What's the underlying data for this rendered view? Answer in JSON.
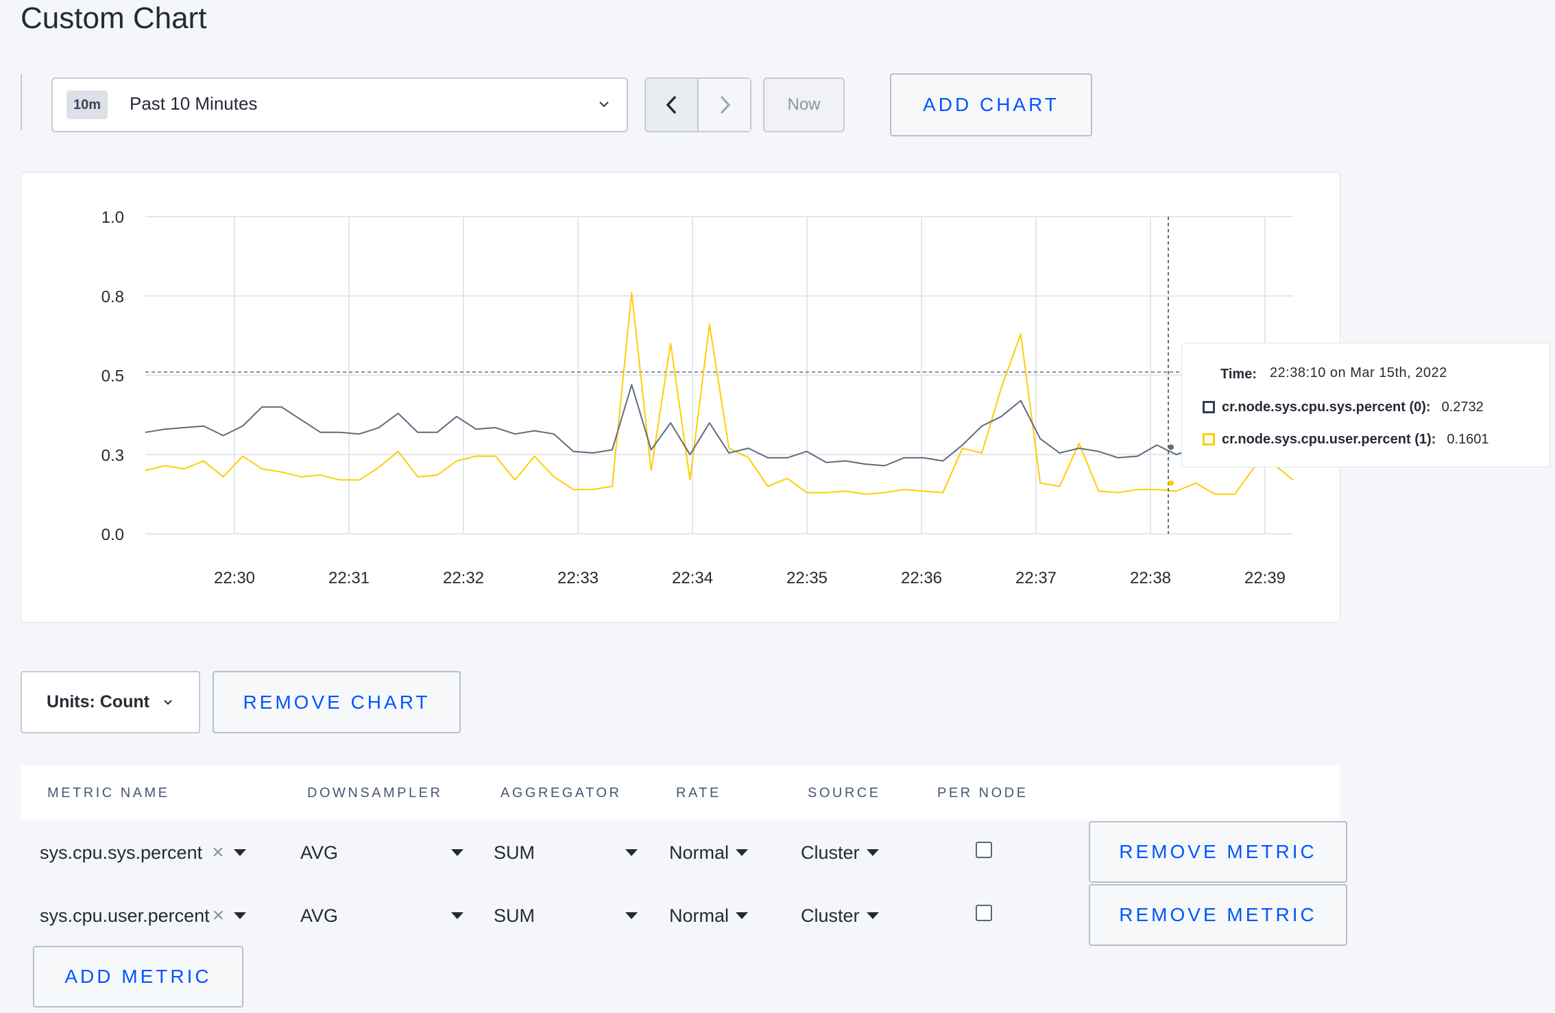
{
  "page": {
    "title": "Custom Chart"
  },
  "toolbar": {
    "time_badge": "10m",
    "time_label": "Past 10 Minutes",
    "now_label": "Now",
    "add_chart_label": "ADD CHART"
  },
  "chart_data": {
    "type": "line",
    "x_ticks": [
      "22:30",
      "22:31",
      "22:32",
      "22:33",
      "22:34",
      "22:35",
      "22:36",
      "22:37",
      "22:38",
      "22:39"
    ],
    "y_ticks": [
      "0.0",
      "0.3",
      "0.5",
      "0.8",
      "1.0"
    ],
    "ylim": [
      0,
      1
    ],
    "grid": true,
    "reference_line": 0.51,
    "series": [
      {
        "name": "cr.node.sys.cpu.sys.percent (0)",
        "color": "#5c6b7e",
        "values": [
          0.32,
          0.33,
          0.335,
          0.34,
          0.31,
          0.34,
          0.4,
          0.4,
          0.36,
          0.32,
          0.32,
          0.315,
          0.335,
          0.38,
          0.32,
          0.32,
          0.37,
          0.33,
          0.335,
          0.315,
          0.325,
          0.315,
          0.26,
          0.255,
          0.265,
          0.47,
          0.265,
          0.35,
          0.25,
          0.35,
          0.255,
          0.27,
          0.24,
          0.24,
          0.26,
          0.225,
          0.23,
          0.22,
          0.215,
          0.24,
          0.24,
          0.23,
          0.28,
          0.34,
          0.37,
          0.42,
          0.3,
          0.255,
          0.27,
          0.26,
          0.24,
          0.245,
          0.28,
          0.25,
          0.2732,
          0.25,
          0.26,
          0.24,
          0.23,
          0.23
        ]
      },
      {
        "name": "cr.node.sys.cpu.user.percent (1)",
        "color": "#ffcd02",
        "values": [
          0.2,
          0.215,
          0.205,
          0.23,
          0.18,
          0.245,
          0.205,
          0.195,
          0.18,
          0.185,
          0.17,
          0.17,
          0.21,
          0.26,
          0.18,
          0.185,
          0.23,
          0.245,
          0.245,
          0.17,
          0.245,
          0.18,
          0.14,
          0.14,
          0.15,
          0.76,
          0.2,
          0.6,
          0.17,
          0.66,
          0.27,
          0.24,
          0.15,
          0.175,
          0.13,
          0.13,
          0.135,
          0.125,
          0.13,
          0.14,
          0.135,
          0.13,
          0.27,
          0.255,
          0.46,
          0.63,
          0.16,
          0.15,
          0.285,
          0.135,
          0.13,
          0.14,
          0.14,
          0.135,
          0.1601,
          0.125,
          0.125,
          0.21,
          0.22,
          0.17
        ]
      }
    ]
  },
  "tooltip": {
    "time_label": "Time:",
    "time_value": "22:38:10 on Mar 15th, 2022",
    "rows": [
      {
        "name": "cr.node.sys.cpu.sys.percent (0):",
        "value": "0.2732"
      },
      {
        "name": "cr.node.sys.cpu.user.percent (1):",
        "value": "0.1601"
      }
    ]
  },
  "controls": {
    "units_label": "Units: Count",
    "remove_chart_label": "REMOVE CHART"
  },
  "metrics": {
    "headers": [
      "METRIC NAME",
      "DOWNSAMPLER",
      "AGGREGATOR",
      "RATE",
      "SOURCE",
      "PER NODE"
    ],
    "rows": [
      {
        "name": "sys.cpu.sys.percent",
        "downsampler": "AVG",
        "aggregator": "SUM",
        "rate": "Normal",
        "source": "Cluster",
        "per_node": false,
        "remove_label": "REMOVE METRIC"
      },
      {
        "name": "sys.cpu.user.percent",
        "downsampler": "AVG",
        "aggregator": "SUM",
        "rate": "Normal",
        "source": "Cluster",
        "per_node": false,
        "remove_label": "REMOVE METRIC"
      }
    ],
    "add_label": "ADD METRIC"
  }
}
